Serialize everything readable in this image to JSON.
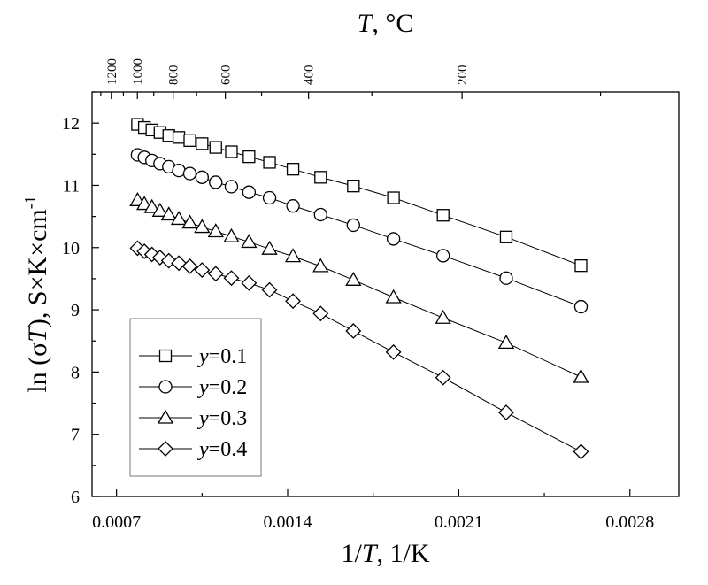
{
  "chart_data": {
    "type": "scatter",
    "title": "",
    "xlabel_parts": [
      "1/",
      "T",
      ", 1/K"
    ],
    "ylabel_parts": [
      "ln (σ",
      "T",
      "), S×K×cm",
      "-1"
    ],
    "top_xlabel_parts": [
      "T",
      ", °C"
    ],
    "xlim": [
      0.0006,
      0.003
    ],
    "ylim": [
      6,
      12.5
    ],
    "x_ticks": [
      0.0007,
      0.0014,
      0.0021,
      0.0028
    ],
    "x_tick_labels": [
      "0.0007",
      "0.0014",
      "0.0021",
      "0.0028"
    ],
    "y_ticks": [
      6,
      7,
      8,
      9,
      10,
      11,
      12
    ],
    "y_tick_labels": [
      "6",
      "7",
      "8",
      "9",
      "10",
      "11",
      "12"
    ],
    "top_ticks_celsius": [
      1200,
      1000,
      800,
      600,
      400,
      200
    ],
    "top_tick_labels": [
      "1200",
      "1000",
      "800",
      "600",
      "400",
      "200"
    ],
    "legend_position": "bottom-left",
    "grid": false,
    "series": [
      {
        "name": "y=0.1",
        "legend_var": "y",
        "legend_value": "=0.1",
        "marker": "square",
        "points": [
          [
            0.000786,
            11.98
          ],
          [
            0.000814,
            11.93
          ],
          [
            0.000845,
            11.89
          ],
          [
            0.000878,
            11.85
          ],
          [
            0.000914,
            11.8
          ],
          [
            0.000955,
            11.77
          ],
          [
            0.001,
            11.72
          ],
          [
            0.00105,
            11.67
          ],
          [
            0.001106,
            11.61
          ],
          [
            0.00117,
            11.54
          ],
          [
            0.001242,
            11.46
          ],
          [
            0.001326,
            11.37
          ],
          [
            0.001422,
            11.26
          ],
          [
            0.001535,
            11.13
          ],
          [
            0.001669,
            10.99
          ],
          [
            0.001833,
            10.8
          ],
          [
            0.002036,
            10.52
          ],
          [
            0.002294,
            10.17
          ],
          [
            0.0026,
            9.71
          ]
        ]
      },
      {
        "name": "y=0.2",
        "legend_var": "y",
        "legend_value": "=0.2",
        "marker": "circle",
        "points": [
          [
            0.000786,
            11.49
          ],
          [
            0.000814,
            11.45
          ],
          [
            0.000845,
            11.4
          ],
          [
            0.000878,
            11.35
          ],
          [
            0.000914,
            11.3
          ],
          [
            0.000955,
            11.24
          ],
          [
            0.001,
            11.19
          ],
          [
            0.00105,
            11.13
          ],
          [
            0.001106,
            11.05
          ],
          [
            0.00117,
            10.98
          ],
          [
            0.001242,
            10.89
          ],
          [
            0.001326,
            10.8
          ],
          [
            0.001422,
            10.67
          ],
          [
            0.001535,
            10.53
          ],
          [
            0.001669,
            10.36
          ],
          [
            0.001833,
            10.14
          ],
          [
            0.002036,
            9.87
          ],
          [
            0.002294,
            9.51
          ],
          [
            0.0026,
            9.05
          ]
        ]
      },
      {
        "name": "y=0.3",
        "legend_var": "y",
        "legend_value": "=0.3",
        "marker": "triangle",
        "points": [
          [
            0.000786,
            10.76
          ],
          [
            0.000814,
            10.7
          ],
          [
            0.000845,
            10.65
          ],
          [
            0.000878,
            10.59
          ],
          [
            0.000914,
            10.53
          ],
          [
            0.000955,
            10.46
          ],
          [
            0.001,
            10.4
          ],
          [
            0.00105,
            10.33
          ],
          [
            0.001106,
            10.26
          ],
          [
            0.00117,
            10.18
          ],
          [
            0.001242,
            10.09
          ],
          [
            0.001326,
            9.98
          ],
          [
            0.001422,
            9.86
          ],
          [
            0.001535,
            9.7
          ],
          [
            0.001669,
            9.48
          ],
          [
            0.001833,
            9.2
          ],
          [
            0.002036,
            8.87
          ],
          [
            0.002294,
            8.47
          ],
          [
            0.0026,
            7.92
          ]
        ]
      },
      {
        "name": "y=0.4",
        "legend_var": "y",
        "legend_value": "=0.4",
        "marker": "diamond",
        "points": [
          [
            0.000786,
            9.99
          ],
          [
            0.000814,
            9.94
          ],
          [
            0.000845,
            9.89
          ],
          [
            0.000878,
            9.84
          ],
          [
            0.000914,
            9.79
          ],
          [
            0.000955,
            9.75
          ],
          [
            0.001,
            9.7
          ],
          [
            0.00105,
            9.64
          ],
          [
            0.001106,
            9.58
          ],
          [
            0.00117,
            9.51
          ],
          [
            0.001242,
            9.43
          ],
          [
            0.001326,
            9.32
          ],
          [
            0.001422,
            9.14
          ],
          [
            0.001535,
            8.94
          ],
          [
            0.001669,
            8.66
          ],
          [
            0.001833,
            8.32
          ],
          [
            0.002036,
            7.91
          ],
          [
            0.002294,
            7.35
          ],
          [
            0.0026,
            6.72
          ]
        ]
      }
    ]
  }
}
